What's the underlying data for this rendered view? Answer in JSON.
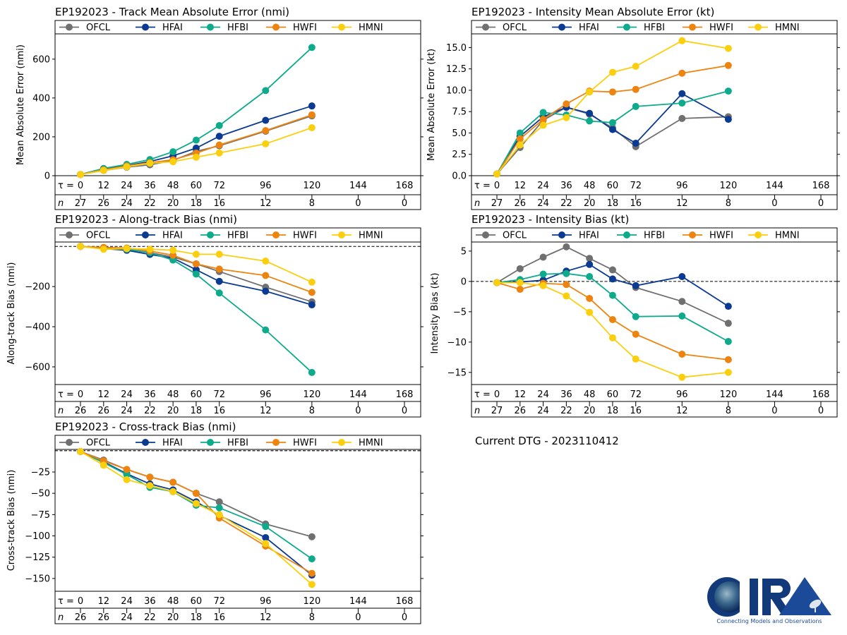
{
  "current_dtg": "Current DTG - 2023110412",
  "logo": {
    "text": "CIRA",
    "tagline": "Connecting Models and Observations"
  },
  "models": [
    {
      "name": "OFCL",
      "color": "#707070"
    },
    {
      "name": "HFAI",
      "color": "#0a3a92"
    },
    {
      "name": "HFBI",
      "color": "#0eaa8c"
    },
    {
      "name": "HWFI",
      "color": "#ee8410"
    },
    {
      "name": "HMNI",
      "color": "#fbcf0e"
    }
  ],
  "chart_data": [
    {
      "type": "line",
      "title": "EP192023 - Track Mean Absolute Error (nmi)",
      "ylabel": "Mean Absolute Error (nmi)",
      "xlabel": "τ",
      "x": [
        0,
        12,
        24,
        36,
        48,
        60,
        72,
        96,
        120
      ],
      "x_ticks": [
        0,
        12,
        24,
        36,
        48,
        60,
        72,
        96,
        120,
        144,
        168
      ],
      "n_counts": [
        27,
        26,
        24,
        22,
        20,
        18,
        16,
        12,
        8,
        0,
        0
      ],
      "ylim": [
        0,
        730
      ],
      "y_ticks": [
        0,
        200,
        400,
        600
      ],
      "zero_line": false,
      "series": [
        {
          "name": "OFCL",
          "values": [
            6,
            27,
            44,
            56,
            79,
            125,
            154,
            229,
            308
          ]
        },
        {
          "name": "HFAI",
          "values": [
            6,
            36,
            52,
            73,
            102,
            142,
            203,
            285,
            359
          ]
        },
        {
          "name": "HFBI",
          "values": [
            6,
            37,
            58,
            83,
            123,
            183,
            258,
            438,
            660
          ]
        },
        {
          "name": "HWFI",
          "values": [
            6,
            30,
            50,
            67,
            82,
            116,
            158,
            232,
            313
          ]
        },
        {
          "name": "HMNI",
          "values": [
            6,
            27,
            46,
            64,
            72,
            95,
            117,
            164,
            247
          ]
        }
      ],
      "legend": "top"
    },
    {
      "type": "line",
      "title": "EP192023 - Intensity Mean Absolute Error (kt)",
      "ylabel": "Mean Absolute Error (kt)",
      "xlabel": "τ",
      "x": [
        0,
        12,
        24,
        36,
        48,
        60,
        72,
        96,
        120
      ],
      "x_ticks": [
        0,
        12,
        24,
        36,
        48,
        60,
        72,
        96,
        120,
        144,
        168
      ],
      "n_counts": [
        27,
        26,
        24,
        22,
        20,
        18,
        16,
        12,
        8,
        0,
        0
      ],
      "ylim": [
        0,
        16.6
      ],
      "y_ticks": [
        0.0,
        2.5,
        5.0,
        7.5,
        10.0,
        12.5,
        15.0
      ],
      "zero_line": false,
      "series": [
        {
          "name": "OFCL",
          "values": [
            0.2,
            3.3,
            6.5,
            8.0,
            7.2,
            5.6,
            3.4,
            6.7,
            6.9
          ]
        },
        {
          "name": "HFAI",
          "values": [
            0.2,
            4.6,
            6.9,
            8.0,
            7.3,
            5.4,
            3.8,
            9.6,
            6.6
          ]
        },
        {
          "name": "HFBI",
          "values": [
            0.2,
            5.0,
            7.4,
            7.1,
            6.4,
            6.2,
            8.1,
            8.5,
            9.9
          ]
        },
        {
          "name": "HWFI",
          "values": [
            0.2,
            4.3,
            6.6,
            8.4,
            9.9,
            9.8,
            10.1,
            12.0,
            12.9
          ]
        },
        {
          "name": "HMNI",
          "values": [
            0.2,
            3.6,
            5.9,
            6.8,
            9.8,
            12.1,
            12.8,
            15.8,
            14.9
          ]
        }
      ],
      "legend": "top"
    },
    {
      "type": "line",
      "title": "EP192023 - Along-track Bias (nmi)",
      "ylabel": "Along-track Bias (nmi)",
      "xlabel": "τ",
      "x": [
        0,
        12,
        24,
        36,
        48,
        60,
        72,
        96,
        120
      ],
      "x_ticks": [
        0,
        12,
        24,
        36,
        48,
        60,
        72,
        96,
        120,
        144,
        168
      ],
      "n_counts": [
        26,
        26,
        24,
        22,
        20,
        18,
        16,
        12,
        8,
        0,
        0
      ],
      "ylim": [
        -688,
        22
      ],
      "y_ticks": [
        -600,
        -400,
        -200
      ],
      "zero_line": true,
      "series": [
        {
          "name": "OFCL",
          "values": [
            0,
            -11,
            -14,
            -31,
            -53,
            -87,
            -125,
            -203,
            -276
          ]
        },
        {
          "name": "HFAI",
          "values": [
            0,
            -11,
            -19,
            -40,
            -59,
            -116,
            -174,
            -223,
            -291
          ]
        },
        {
          "name": "HFBI",
          "values": [
            0,
            -11,
            -14,
            -31,
            -68,
            -138,
            -232,
            -416,
            -628
          ]
        },
        {
          "name": "HWFI",
          "values": [
            0,
            -5,
            -8,
            -23,
            -44,
            -87,
            -113,
            -145,
            -229
          ]
        },
        {
          "name": "HMNI",
          "values": [
            0,
            -14,
            -11,
            -14,
            -19,
            -39,
            -39,
            -73,
            -178
          ]
        }
      ],
      "legend": "top"
    },
    {
      "type": "line",
      "title": "EP192023 - Intensity Bias (kt)",
      "ylabel": "Intensity Bias (kt)",
      "xlabel": "τ",
      "x": [
        0,
        12,
        24,
        36,
        48,
        60,
        72,
        96,
        120
      ],
      "x_ticks": [
        0,
        12,
        24,
        36,
        48,
        60,
        72,
        96,
        120,
        144,
        168
      ],
      "n_counts": [
        27,
        26,
        24,
        22,
        20,
        18,
        16,
        12,
        8,
        0,
        0
      ],
      "ylim": [
        -17.0,
        6.5
      ],
      "y_ticks": [
        -15,
        -10,
        -5,
        0,
        5
      ],
      "zero_line": true,
      "series": [
        {
          "name": "OFCL",
          "values": [
            -0.2,
            2.1,
            4.0,
            5.7,
            3.8,
            1.9,
            -1.0,
            -3.3,
            -6.9
          ]
        },
        {
          "name": "HFAI",
          "values": [
            -0.2,
            -0.1,
            0.2,
            1.7,
            2.8,
            0.4,
            -0.7,
            0.8,
            -4.1
          ]
        },
        {
          "name": "HFBI",
          "values": [
            -0.2,
            0.3,
            1.2,
            1.3,
            0.8,
            -2.3,
            -5.8,
            -5.7,
            -9.9
          ]
        },
        {
          "name": "HWFI",
          "values": [
            -0.2,
            -1.3,
            -0.3,
            -0.5,
            -2.8,
            -6.3,
            -8.7,
            -12.0,
            -12.9
          ]
        },
        {
          "name": "HMNI",
          "values": [
            -0.2,
            -0.2,
            -0.7,
            -2.4,
            -5.1,
            -9.3,
            -12.8,
            -15.8,
            -15.0
          ]
        }
      ],
      "legend": "top"
    },
    {
      "type": "line",
      "title": "EP192023 - Cross-track Bias (nmi)",
      "ylabel": "Cross-track Bias (nmi)",
      "xlabel": "τ",
      "x": [
        0,
        12,
        24,
        36,
        48,
        60,
        72,
        96,
        120
      ],
      "x_ticks": [
        0,
        12,
        24,
        36,
        48,
        60,
        72,
        96,
        120,
        144,
        168
      ],
      "n_counts": [
        26,
        26,
        24,
        22,
        20,
        18,
        16,
        12,
        8,
        0,
        0
      ],
      "ylim": [
        -165,
        1.5
      ],
      "y_ticks": [
        -150,
        -125,
        -100,
        -75,
        -50,
        -25
      ],
      "zero_line": true,
      "series": [
        {
          "name": "OFCL",
          "values": [
            -1,
            -11,
            -22,
            -31,
            -37,
            -50,
            -60,
            -86,
            -101
          ]
        },
        {
          "name": "HFAI",
          "values": [
            -1,
            -13,
            -27,
            -39,
            -46,
            -60,
            -76,
            -102,
            -146
          ]
        },
        {
          "name": "HFBI",
          "values": [
            -1,
            -14,
            -28,
            -43,
            -48,
            -64,
            -67,
            -89,
            -127
          ]
        },
        {
          "name": "HWFI",
          "values": [
            -1,
            -12,
            -22,
            -31,
            -37,
            -50,
            -79,
            -112,
            -144
          ]
        },
        {
          "name": "HMNI",
          "values": [
            -1,
            -17,
            -34,
            -41,
            -48,
            -62,
            -75,
            -109,
            -157
          ]
        }
      ],
      "legend": "top"
    }
  ]
}
